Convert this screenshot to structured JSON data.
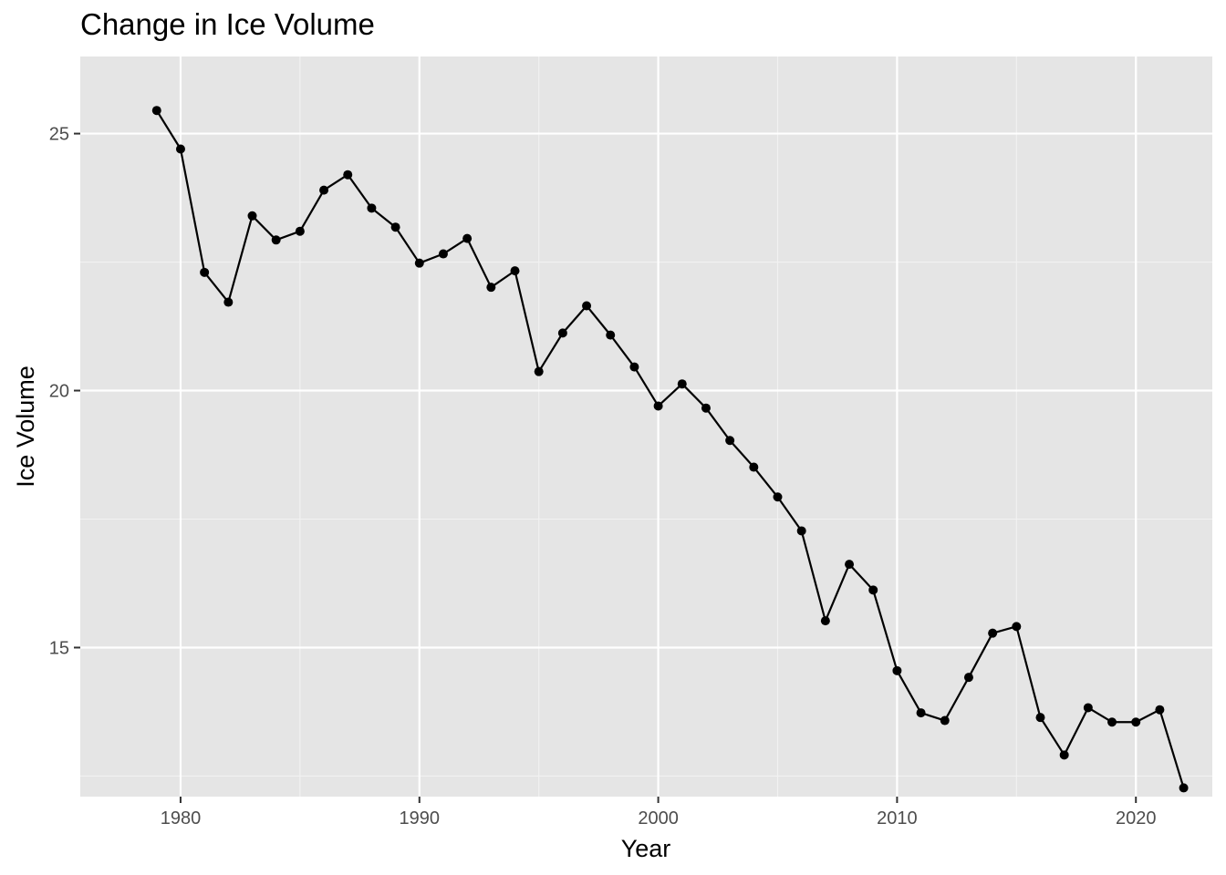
{
  "chart_data": {
    "type": "line",
    "title": "Change in Ice Volume",
    "xlabel": "Year",
    "ylabel": "Ice Volume",
    "xlim": [
      1975.8,
      2023.2
    ],
    "ylim": [
      12.1,
      26.5
    ],
    "xticks": [
      1980,
      1990,
      2000,
      2010,
      2020
    ],
    "yticks": [
      15,
      20,
      25
    ],
    "grid": true,
    "legend": "none",
    "colors": {
      "panel": "#e5e5e5",
      "grid_major": "#ffffff",
      "grid_minor": "#f2f2f2",
      "line": "#000000",
      "tick_label": "#4d4d4d"
    },
    "series": [
      {
        "x": [
          1979,
          1980,
          1981,
          1982,
          1983,
          1984,
          1985,
          1986,
          1987,
          1988,
          1989,
          1990,
          1991,
          1992,
          1993,
          1994,
          1995,
          1996,
          1997,
          1998,
          1999,
          2000,
          2001,
          2002,
          2003,
          2004,
          2005,
          2006,
          2007,
          2008,
          2009,
          2010,
          2011,
          2012,
          2013,
          2014,
          2015,
          2016,
          2017,
          2018,
          2019,
          2020,
          2021,
          2022
        ],
        "values": [
          25.45,
          24.7,
          22.3,
          21.72,
          23.4,
          22.93,
          23.1,
          23.9,
          24.2,
          23.55,
          23.18,
          22.48,
          22.66,
          22.96,
          22.01,
          22.33,
          20.37,
          21.12,
          21.65,
          21.08,
          20.46,
          19.7,
          20.13,
          19.66,
          19.03,
          18.51,
          17.93,
          17.27,
          15.52,
          16.62,
          16.12,
          14.55,
          13.73,
          13.58,
          14.42,
          15.28,
          15.41,
          13.64,
          12.91,
          13.83,
          13.55,
          13.55,
          13.79,
          12.27
        ]
      }
    ]
  }
}
